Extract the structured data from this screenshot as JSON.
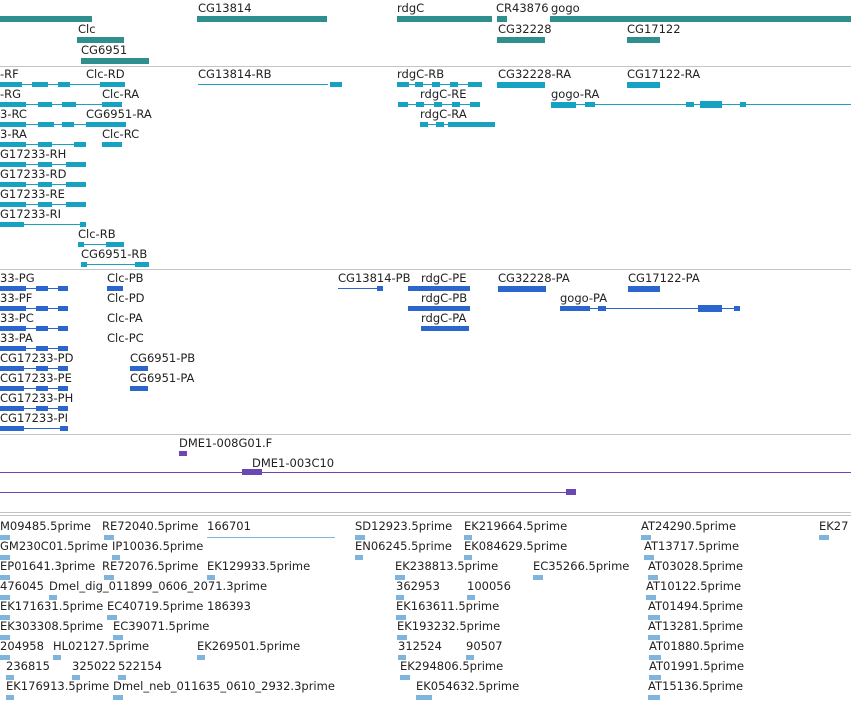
{
  "colors": {
    "gene": "#2f8f8f",
    "transcript": "#17a2c3",
    "cds": "#2b66cf",
    "est": "#6b47b3",
    "read": "#7fb5dd",
    "divider": "#c4c4c4"
  },
  "tracks": {
    "genes": {
      "labels": [
        "CG13814",
        "rdgC",
        "CR43876",
        "gogo",
        "Clc",
        "CG32228",
        "CG17122",
        "CG6951"
      ]
    },
    "transcripts": {
      "labels": [
        "-RF",
        "Clc-RD",
        "CG13814-RB",
        "rdgC-RB",
        "CG32228-RA",
        "CG17122-RA",
        "-RG",
        "Clc-RA",
        "rdgC-RE",
        "gogo-RA",
        "3-RC",
        "CG6951-RA",
        "rdgC-RA",
        "3-RA",
        "Clc-RC",
        "G17233-RH",
        "G17233-RD",
        "G17233-RE",
        "G17233-RI",
        "Clc-RB",
        "CG6951-RB"
      ]
    },
    "proteins": {
      "labels": [
        "33-PG",
        "Clc-PB",
        "CG13814-PB",
        "rdgC-PE",
        "CG32228-PA",
        "CG17122-PA",
        "33-PF",
        "Clc-PD",
        "rdgC-PB",
        "gogo-PA",
        "33-PC",
        "Clc-PA",
        "rdgC-PA",
        "33-PA",
        "Clc-PC",
        "CG17233-PD",
        "CG6951-PB",
        "CG17233-PE",
        "CG6951-PA",
        "CG17233-PH",
        "CG17233-PI"
      ]
    },
    "ests": {
      "labels": [
        "DME1-008G01.F",
        "DME1-003C10"
      ]
    },
    "reads": {
      "labels": [
        "M09485.5prime",
        "RE72040.5prime",
        "166701",
        "SD12923.5prime",
        "EK219664.5prime",
        "AT24290.5prime",
        "EK27",
        "GM230C01.5prime",
        "IP10036.5prime",
        "EN06245.5prime",
        "EK084629.5prime",
        "AT13717.5prime",
        "EP01641.3prime",
        "RE72076.5prime",
        "EK129933.5prime",
        "EK238813.5prime",
        "EC35266.5prime",
        "AT03028.5prime",
        "476045",
        "Dmel_dig_011899_0606_2071.3prime",
        "362953",
        "100056",
        "AT10122.5prime",
        "EK171631.5prime",
        "EC40719.5prime",
        "186393",
        "EK163611.5prime",
        "AT01494.5prime",
        "EK303308.5prime",
        "EC39071.5prime",
        "EK193232.5prime",
        "AT13281.5prime",
        "204958",
        "HL02127.5prime",
        "EK269501.5prime",
        "312524",
        "90507",
        "AT01880.5prime",
        "236815",
        "325022",
        "522154",
        "EK294806.5prime",
        "AT01991.5prime",
        "EK176913.5prime",
        "Dmel_neb_011635_0610_2932.3prime",
        "EK054632.5prime",
        "AT15136.5prime"
      ]
    }
  }
}
